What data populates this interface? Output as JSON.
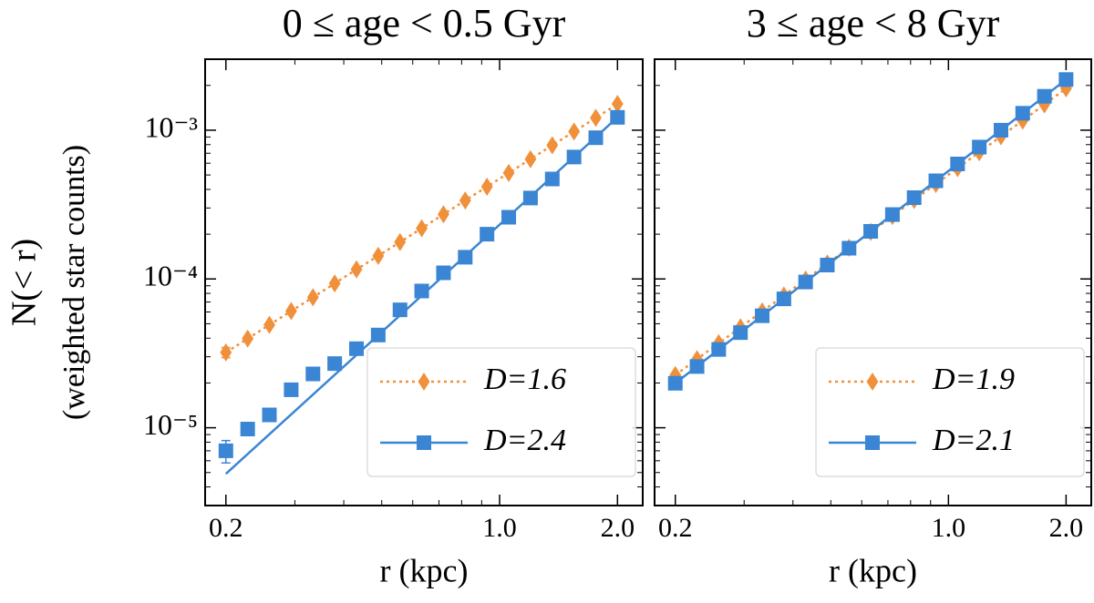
{
  "chart_data": [
    {
      "type": "line",
      "title": "0 ≤ age < 0.5 Gyr",
      "xlabel": "r (kpc)",
      "ylabel": [
        "N(< r)",
        "(weighted star counts)"
      ],
      "xscale": "log",
      "yscale": "log",
      "legend": "lower right",
      "xlim": [
        0.177,
        2.32
      ],
      "ylim": [
        3e-06,
        0.003
      ],
      "xticks": [
        0.2,
        {
          "value": 1,
          "label": "1.0"
        },
        {
          "value": 2,
          "label": "2.0"
        }
      ],
      "yticks": [
        {
          "value": 1e-05,
          "label": "10⁻⁵"
        },
        {
          "value": 0.0001,
          "label": "10⁻⁴"
        },
        {
          "value": 0.001,
          "label": "10⁻³"
        }
      ],
      "xminor": [
        0.3,
        0.4,
        0.5,
        0.6,
        0.7,
        0.8,
        0.9
      ],
      "yminor": [
        4e-06,
        5e-06,
        6e-06,
        7e-06,
        8e-06,
        9e-06,
        2e-05,
        3e-05,
        4e-05,
        5e-05,
        6e-05,
        7e-05,
        8e-05,
        9e-05,
        0.0002,
        0.0003,
        0.0004,
        0.0005,
        0.0006,
        0.0007,
        0.0008,
        0.0009,
        0.002
      ],
      "x": [
        0.2,
        0.2273,
        0.2583,
        0.2936,
        0.3337,
        0.3792,
        0.431,
        0.4898,
        0.5567,
        0.6325,
        0.7189,
        0.817,
        0.9285,
        1.0552,
        1.1992,
        1.3629,
        1.549,
        1.7604,
        2.0
      ],
      "series": [
        {
          "name": "D=1.6",
          "color": "#f0903a",
          "marker": "diamond",
          "linestyle": "dotted",
          "values": [
            3.21e-05,
            3.97e-05,
            4.92e-05,
            6.08e-05,
            7.53e-05,
            9.33e-05,
            0.000116,
            0.000143,
            0.000177,
            0.000219,
            0.000272,
            0.000337,
            0.000417,
            0.000516,
            0.000639,
            0.000791,
            0.000979,
            0.00121,
            0.0015
          ],
          "errors": [
            2.5e-06,
            null,
            null,
            null,
            null,
            null,
            null,
            null,
            null,
            null,
            null,
            null,
            null,
            null,
            null,
            null,
            null,
            null,
            null
          ]
        },
        {
          "name": "D=2.4",
          "color": "#3a85d4",
          "marker": "square",
          "linestyle": "solid",
          "values": [
            7e-06,
            9.8e-06,
            1.22e-05,
            1.8e-05,
            2.3e-05,
            2.7e-05,
            3.4e-05,
            4.2e-05,
            6.2e-05,
            8.3e-05,
            0.00011,
            0.00014,
            0.0002,
            0.00026,
            0.00035,
            0.00047,
            0.00066,
            0.00089,
            0.00122
          ],
          "errors": [
            1.2e-06,
            null,
            null,
            null,
            null,
            null,
            null,
            null,
            null,
            null,
            null,
            null,
            null,
            null,
            null,
            null,
            null,
            null,
            null
          ],
          "fit": {
            "x": [
              0.2,
              2.0
            ],
            "values": [
              4.9e-06,
              0.00122
            ]
          }
        }
      ]
    },
    {
      "type": "line",
      "title": "3 ≤ age < 8 Gyr",
      "xlabel": "r (kpc)",
      "xscale": "log",
      "yscale": "log",
      "legend": "lower right",
      "xlim": [
        0.177,
        2.32
      ],
      "ylim": [
        3e-06,
        0.003
      ],
      "xticks": [
        0.2,
        {
          "value": 1,
          "label": "1.0"
        },
        {
          "value": 2,
          "label": "2.0"
        }
      ],
      "yticks": [
        1e-05,
        0.0001,
        0.001
      ],
      "xminor": [
        0.3,
        0.4,
        0.5,
        0.6,
        0.7,
        0.8,
        0.9
      ],
      "yminor": [
        4e-06,
        5e-06,
        6e-06,
        7e-06,
        8e-06,
        9e-06,
        2e-05,
        3e-05,
        4e-05,
        5e-05,
        6e-05,
        7e-05,
        8e-05,
        9e-05,
        0.0002,
        0.0003,
        0.0004,
        0.0005,
        0.0006,
        0.0007,
        0.0008,
        0.0009,
        0.002
      ],
      "x": [
        0.2,
        0.2273,
        0.2583,
        0.2936,
        0.3337,
        0.3792,
        0.431,
        0.4898,
        0.5567,
        0.6325,
        0.7189,
        0.817,
        0.9285,
        1.0552,
        1.1992,
        1.3629,
        1.549,
        1.7604,
        2.0
      ],
      "series": [
        {
          "name": "D=1.9",
          "color": "#f0903a",
          "marker": "diamond",
          "linestyle": "dotted",
          "values": [
            2.26e-05,
            2.89e-05,
            3.7e-05,
            4.73e-05,
            6.05e-05,
            7.74e-05,
            9.91e-05,
            0.000127,
            0.000162,
            0.000207,
            0.000265,
            0.00034,
            0.000435,
            0.000556,
            0.000711,
            0.00091,
            0.00116,
            0.00149,
            0.00191
          ]
        },
        {
          "name": "D=2.1",
          "color": "#3a85d4",
          "marker": "square",
          "linestyle": "solid",
          "values": [
            1.99e-05,
            2.58e-05,
            3.36e-05,
            4.36e-05,
            5.66e-05,
            7.35e-05,
            9.54e-05,
            0.000124,
            0.000161,
            0.000209,
            0.000271,
            0.000352,
            0.000457,
            0.000593,
            0.00077,
            0.001,
            0.0013,
            0.00169,
            0.00219
          ],
          "fit": {
            "x": [
              0.2,
              2.0
            ],
            "values": [
              1.99e-05,
              0.00219
            ]
          }
        }
      ]
    }
  ]
}
